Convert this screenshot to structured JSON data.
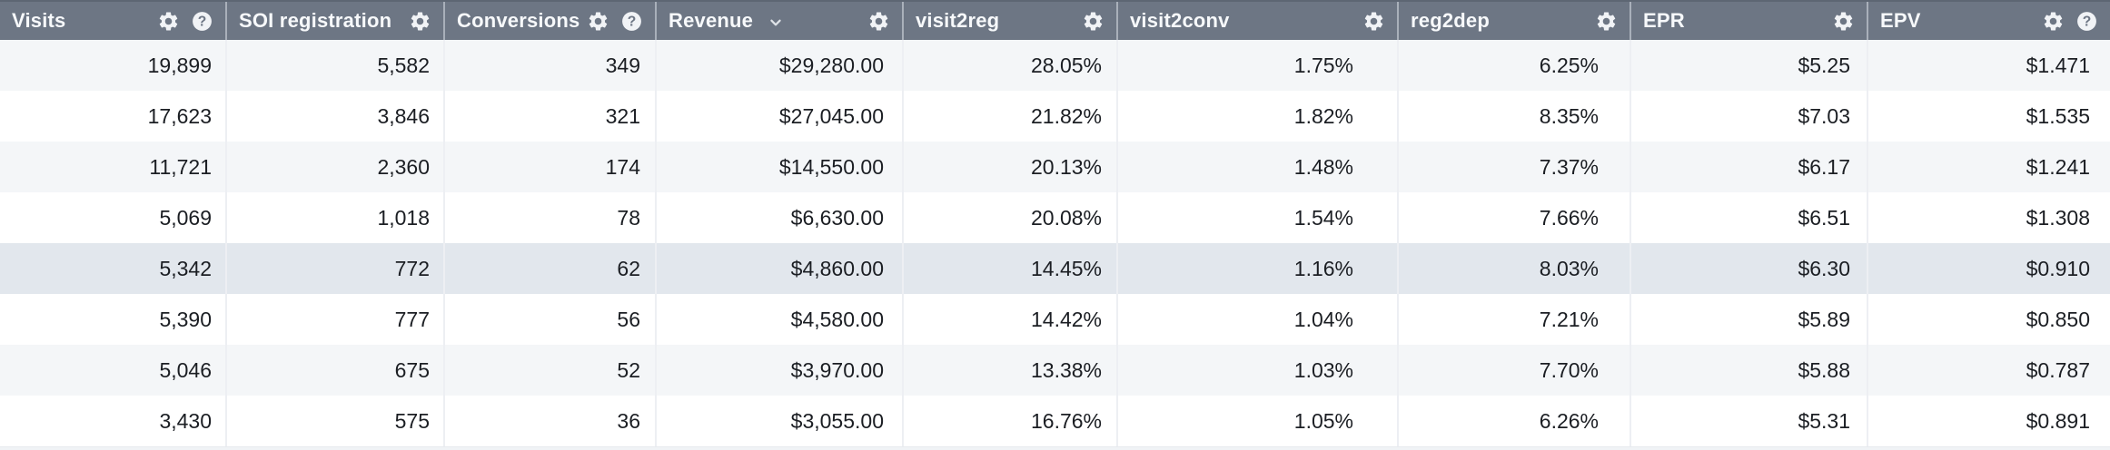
{
  "table": {
    "columns": [
      {
        "label": "Visits",
        "icons": [
          "gear-icon",
          "help-icon"
        ]
      },
      {
        "label": "SOI registration",
        "icons": [
          "gear-icon"
        ]
      },
      {
        "label": "Conversions",
        "icons": [
          "gear-icon",
          "help-icon"
        ]
      },
      {
        "label": "Revenue",
        "icons": [
          "gear-icon"
        ],
        "sort": "desc"
      },
      {
        "label": "visit2reg",
        "icons": [
          "gear-icon"
        ]
      },
      {
        "label": "visit2conv",
        "icons": [
          "gear-icon"
        ]
      },
      {
        "label": "reg2dep",
        "icons": [
          "gear-icon"
        ]
      },
      {
        "label": "EPR",
        "icons": [
          "gear-icon"
        ]
      },
      {
        "label": "EPV",
        "icons": [
          "gear-icon",
          "help-icon"
        ]
      }
    ],
    "sorted_column": "Revenue",
    "sort_direction": "desc",
    "rows": [
      [
        "19,899",
        "5,582",
        "349",
        "$29,280.00",
        "28.05%",
        "1.75%",
        "6.25%",
        "$5.25",
        "$1.471"
      ],
      [
        "17,623",
        "3,846",
        "321",
        "$27,045.00",
        "21.82%",
        "1.82%",
        "8.35%",
        "$7.03",
        "$1.535"
      ],
      [
        "11,721",
        "2,360",
        "174",
        "$14,550.00",
        "20.13%",
        "1.48%",
        "7.37%",
        "$6.17",
        "$1.241"
      ],
      [
        "5,069",
        "1,018",
        "78",
        "$6,630.00",
        "20.08%",
        "1.54%",
        "7.66%",
        "$6.51",
        "$1.308"
      ],
      [
        "5,342",
        "772",
        "62",
        "$4,860.00",
        "14.45%",
        "1.16%",
        "8.03%",
        "$6.30",
        "$0.910"
      ],
      [
        "5,390",
        "777",
        "56",
        "$4,580.00",
        "14.42%",
        "1.04%",
        "7.21%",
        "$5.89",
        "$0.850"
      ],
      [
        "5,046",
        "675",
        "52",
        "$3,970.00",
        "13.38%",
        "1.03%",
        "7.70%",
        "$5.88",
        "$0.787"
      ],
      [
        "3,430",
        "575",
        "36",
        "$3,055.00",
        "16.76%",
        "1.05%",
        "6.26%",
        "$5.31",
        "$0.891"
      ]
    ],
    "highlighted_row_index": 4,
    "colors": {
      "header_bg": "#6d7684",
      "header_text": "#f7f9fb",
      "stripe_row": "#f4f6f8",
      "highlighted_row": "#e2e7ed",
      "body_text": "#1b1e23"
    }
  }
}
